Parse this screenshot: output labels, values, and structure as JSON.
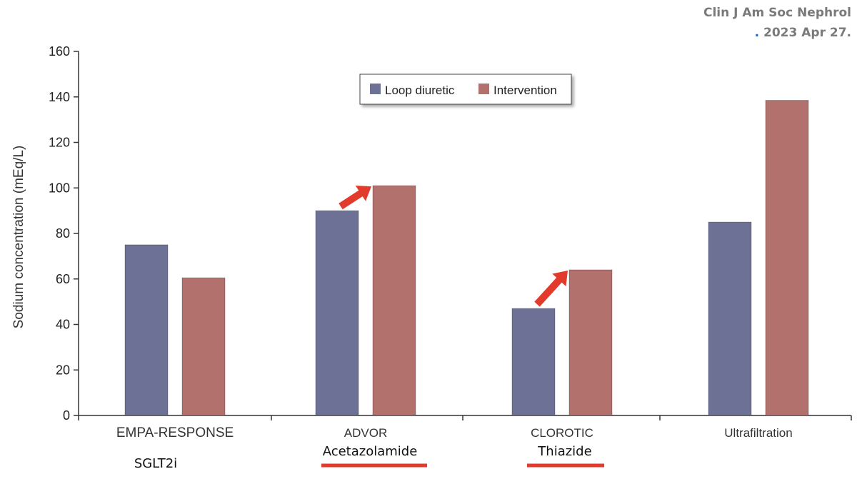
{
  "citation": {
    "journal": "Clin J Am Soc Nephrol",
    "dot": ".",
    "date": " 2023 Apr 27."
  },
  "colors": {
    "loop_diuretic": "#6e7196",
    "intervention": "#b2716d",
    "arrow": "#e23b2c",
    "underline": "#e23b2c",
    "axis": "#333333"
  },
  "chart_data": {
    "type": "bar",
    "title": "",
    "ylabel": "Sodium concentration (mEq/L)",
    "xlabel": "",
    "ylim": [
      0,
      160
    ],
    "yticks": [
      0,
      20,
      40,
      60,
      80,
      100,
      120,
      140,
      160
    ],
    "categories": [
      "EMPA-RESPONSE",
      "ADVOR",
      "CLOROTIC",
      "Ultrafiltration"
    ],
    "sublabels": [
      "SGLT2i",
      "Acetazolamide",
      "Thiazide",
      ""
    ],
    "underlined_sublabels": [
      false,
      true,
      true,
      false
    ],
    "series": [
      {
        "name": "Loop diuretic",
        "color": "#6e7196",
        "values": [
          75,
          90,
          47,
          85
        ]
      },
      {
        "name": "Intervention",
        "color": "#b2716d",
        "values": [
          60.5,
          101,
          64,
          138.5
        ]
      }
    ],
    "arrows_at_categories": [
      1,
      2
    ],
    "legend": {
      "position": "top-center"
    },
    "grid": false
  }
}
